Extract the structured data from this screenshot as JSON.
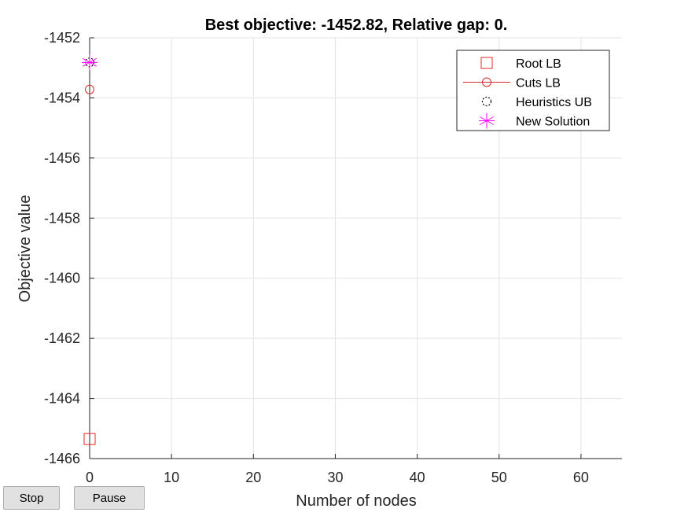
{
  "buttons": {
    "stop": "Stop",
    "pause": "Pause"
  },
  "colors": {
    "root_lb": "#e8262a",
    "cuts_lb": "#d62a2a",
    "heuristics_ub": "#000000",
    "new_solution": "#ff00ff",
    "grid": "#e3e3e3",
    "axis": "#262626"
  },
  "chart_data": {
    "type": "scatter",
    "title": "Best objective: -1452.82, Relative gap: 0.",
    "xlabel": "Number of nodes",
    "ylabel": "Objective value",
    "xlim": [
      0,
      65
    ],
    "ylim": [
      -1466,
      -1452
    ],
    "xticks": [
      0,
      10,
      20,
      30,
      40,
      50,
      60
    ],
    "yticks": [
      -1466,
      -1464,
      -1462,
      -1460,
      -1458,
      -1456,
      -1454,
      -1452
    ],
    "grid": true,
    "legend_position": "top-right",
    "series": [
      {
        "name": "Root LB",
        "marker": "square",
        "points": [
          [
            0,
            -1465.35
          ]
        ]
      },
      {
        "name": "Cuts LB",
        "marker": "circle-line",
        "points": [
          [
            0,
            -1453.72
          ]
        ]
      },
      {
        "name": "Heuristics UB",
        "marker": "dotted-circle",
        "points": [
          [
            0,
            -1452.82
          ]
        ]
      },
      {
        "name": "New Solution",
        "marker": "asterisk",
        "points": [
          [
            0,
            -1452.82
          ]
        ]
      }
    ]
  }
}
